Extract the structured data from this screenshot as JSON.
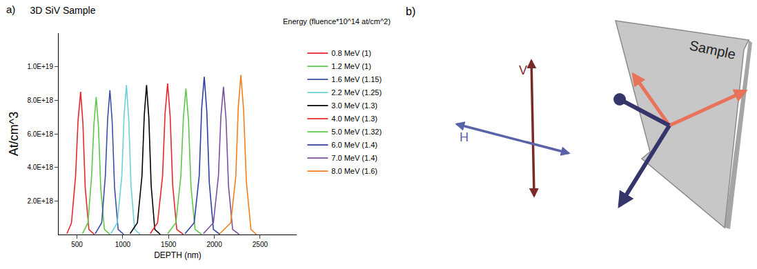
{
  "chart_data": {
    "type": "line",
    "title": "3D SiV Sample",
    "annotations": [
      "a)",
      "Energy (fluence*10^14 at/cm^2)"
    ],
    "x_label": "DEPTH (nm)",
    "y_label": "At/cm^3",
    "xlim": [
      300,
      2900
    ],
    "xticks": [
      500,
      1000,
      1500,
      2000,
      2500
    ],
    "ylim": [
      0,
      1.2e+19
    ],
    "yticks": [
      {
        "value": 2e+18,
        "label": "2.0E+18"
      },
      {
        "value": 4e+18,
        "label": "4.0E+18"
      },
      {
        "value": 6e+18,
        "label": "6.0E+18"
      },
      {
        "value": 8e+18,
        "label": "8.0E+18"
      },
      {
        "value": 1e+19,
        "label": "1.0E+19"
      }
    ],
    "grid": false,
    "legend": "right",
    "series": [
      {
        "name": "0.8 MeV (1)",
        "color": "#e8262b",
        "x": [
          390,
          440,
          485,
          512,
          540,
          565,
          590,
          630,
          690
        ],
        "values": [
          5e+16,
          7e+17,
          3.5e+18,
          6.8e+18,
          8.5e+18,
          6.63e+18,
          2.8e+18,
          3e+17,
          1e+16
        ]
      },
      {
        "name": "1.2 MeV (1)",
        "color": "#5cc84a",
        "x": [
          560,
          620,
          660,
          685,
          710,
          735,
          760,
          800,
          860
        ],
        "values": [
          5e+16,
          7e+17,
          3.5e+18,
          6.56e+18,
          8.2e+18,
          6.4e+18,
          2.71e+18,
          3e+17,
          1e+16
        ]
      },
      {
        "name": "1.6 MeV (1.15)",
        "color": "#3b4ea8",
        "x": [
          700,
          770,
          810,
          835,
          860,
          885,
          910,
          950,
          1010
        ],
        "values": [
          5e+16,
          7e+17,
          3.5e+18,
          6.88e+18,
          8.6e+18,
          6.7e+18,
          2.84e+18,
          3e+17,
          1e+16
        ]
      },
      {
        "name": "2.2 MeV (1.25)",
        "color": "#6ad0d8",
        "x": [
          870,
          940,
          990,
          1015,
          1040,
          1065,
          1090,
          1130,
          1190
        ],
        "values": [
          5e+16,
          7e+17,
          3.5e+18,
          7.12e+18,
          8.9e+18,
          6.94e+18,
          2.94e+18,
          3e+17,
          1e+16
        ]
      },
      {
        "name": "3.0 MeV (1.3)",
        "color": "#000000",
        "x": [
          1080,
          1160,
          1210,
          1235,
          1260,
          1285,
          1310,
          1350,
          1410
        ],
        "values": [
          5e+16,
          7e+17,
          3.5e+18,
          7.12e+18,
          8.9e+18,
          6.94e+18,
          2.94e+18,
          3e+17,
          1e+16
        ]
      },
      {
        "name": "4.0 MeV (1.3)",
        "color": "#e8262b",
        "x": [
          1300,
          1380,
          1435,
          1462,
          1490,
          1518,
          1545,
          1590,
          1660
        ],
        "values": [
          5e+16,
          7e+17,
          3.5e+18,
          7.2e+18,
          9e+18,
          7.02e+18,
          2.97e+18,
          3e+17,
          1e+16
        ]
      },
      {
        "name": "5.0 MeV (1.32)",
        "color": "#5cc84a",
        "x": [
          1490,
          1580,
          1635,
          1662,
          1690,
          1718,
          1745,
          1790,
          1860
        ],
        "values": [
          5e+16,
          7e+17,
          3.5e+18,
          6.96e+18,
          8.7e+18,
          6.79e+18,
          2.87e+18,
          3e+17,
          1e+16
        ]
      },
      {
        "name": "6.0 MeV (1.4)",
        "color": "#2f3f9e",
        "x": [
          1680,
          1780,
          1835,
          1862,
          1890,
          1918,
          1945,
          1990,
          2060
        ],
        "values": [
          5e+16,
          7e+17,
          3.5e+18,
          7.52e+18,
          9.4e+18,
          7.33e+18,
          3.1e+18,
          3e+17,
          1e+16
        ]
      },
      {
        "name": "7.0 MeV (1.4)",
        "color": "#7a4fa0",
        "x": [
          1880,
          1990,
          2045,
          2072,
          2100,
          2128,
          2155,
          2200,
          2270
        ],
        "values": [
          5e+16,
          7e+17,
          3.5e+18,
          7.04e+18,
          8.8e+18,
          6.86e+18,
          2.9e+18,
          3e+17,
          1e+16
        ]
      },
      {
        "name": "8.0 MeV (1.6)",
        "color": "#f07f1e",
        "x": [
          2060,
          2180,
          2235,
          2262,
          2290,
          2320,
          2350,
          2400,
          2460
        ],
        "values": [
          5e+16,
          7e+17,
          3.5e+18,
          7.6e+18,
          9.5e+18,
          7.41e+18,
          3.14e+18,
          3e+17,
          1e+16
        ]
      }
    ]
  },
  "diagram": {
    "label": "b)",
    "arrows": [
      {
        "label": "V"
      },
      {
        "label": "H"
      }
    ],
    "sample": {
      "label": "Sample"
    }
  }
}
